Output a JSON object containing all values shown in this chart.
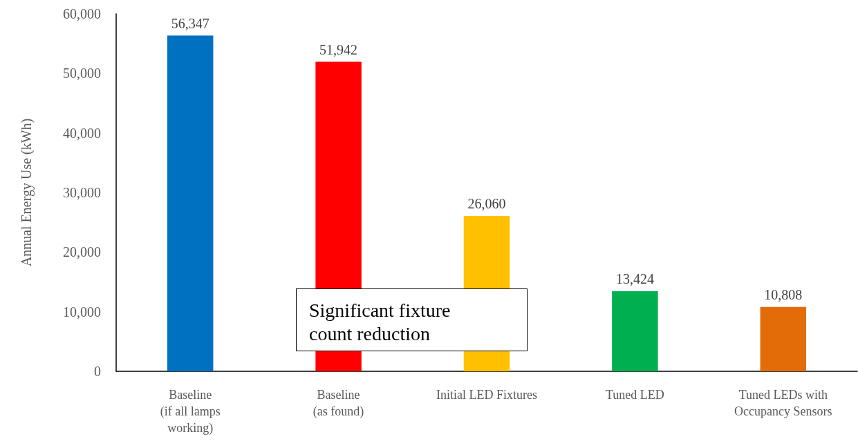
{
  "chart_data": {
    "type": "bar",
    "categories": [
      "Baseline\n(if all lamps\nworking)",
      "Baseline\n(as found)",
      "Initial LED Fixtures",
      "Tuned LED",
      "Tuned LEDs with\nOccupancy Sensors"
    ],
    "values": [
      56347,
      51942,
      26060,
      13424,
      10808
    ],
    "colors": [
      "#0070c0",
      "#ff0000",
      "#ffc000",
      "#00b050",
      "#e36c09"
    ],
    "ylabel": "Annual Energy Use (kWh)",
    "ylim": [
      0,
      60000
    ],
    "yticks": [
      {
        "value": 0,
        "label": "0"
      },
      {
        "value": 10000,
        "label": "10,000"
      },
      {
        "value": 20000,
        "label": "20,000"
      },
      {
        "value": 30000,
        "label": "30,000"
      },
      {
        "value": 40000,
        "label": "40,000"
      },
      {
        "value": 50000,
        "label": "50,000"
      },
      {
        "value": 60000,
        "label": "60,000"
      }
    ],
    "value_labels": [
      "56,347",
      "51,942",
      "26,060",
      "13,424",
      "10,808"
    ],
    "grid": false,
    "annotations": [
      "Significant fixture\ncount reduction"
    ]
  }
}
